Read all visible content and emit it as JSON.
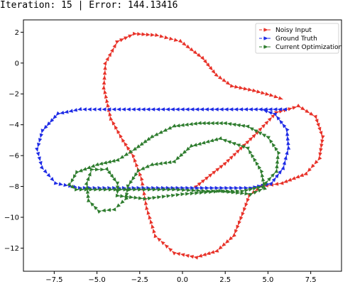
{
  "header": {
    "iteration_label": "Iteration:",
    "iteration_value": "15",
    "separator": "|",
    "error_label": "Error:",
    "error_value": "144.13416"
  },
  "chart_data": {
    "type": "line",
    "marker": "triangle-right",
    "title": "",
    "xlabel": "",
    "ylabel": "",
    "xlim": [
      -9.3,
      9.3
    ],
    "ylim": [
      -13.5,
      2.8
    ],
    "xticks": [
      -7.5,
      -5.0,
      -2.5,
      0.0,
      2.5,
      5.0,
      7.5
    ],
    "xtick_labels": [
      "−7.5",
      "−5.0",
      "−2.5",
      "0.0",
      "2.5",
      "5.0",
      "7.5"
    ],
    "yticks": [
      2,
      0,
      -2,
      -4,
      -6,
      -8,
      -10,
      -12
    ],
    "ytick_labels": [
      "2",
      "0",
      "−2",
      "−4",
      "−6",
      "−8",
      "−10",
      "−12"
    ],
    "grid": false,
    "legend_position": "top-right",
    "series": [
      {
        "name": "Noisy Input",
        "color": "#e8332a",
        "points": [
          [
            0.8,
            -8.0
          ],
          [
            2.5,
            -6.5
          ],
          [
            4.2,
            -4.7
          ],
          [
            5.5,
            -3.2
          ],
          [
            6.8,
            -2.8
          ],
          [
            7.8,
            -3.5
          ],
          [
            8.2,
            -4.8
          ],
          [
            8.0,
            -6.2
          ],
          [
            7.2,
            -7.2
          ],
          [
            5.8,
            -7.8
          ],
          [
            4.6,
            -8.0
          ],
          [
            3.9,
            -8.6
          ],
          [
            3.5,
            -9.8
          ],
          [
            3.0,
            -11.2
          ],
          [
            2.0,
            -12.2
          ],
          [
            0.8,
            -12.6
          ],
          [
            -0.5,
            -12.3
          ],
          [
            -1.6,
            -11.2
          ],
          [
            -2.1,
            -9.4
          ],
          [
            -2.4,
            -7.5
          ],
          [
            -2.9,
            -6.0
          ],
          [
            -3.5,
            -5.0
          ],
          [
            -4.2,
            -3.6
          ],
          [
            -4.6,
            -1.6
          ],
          [
            -4.5,
            0.0
          ],
          [
            -3.8,
            1.4
          ],
          [
            -2.8,
            1.9
          ],
          [
            -1.5,
            1.8
          ],
          [
            -0.1,
            1.4
          ],
          [
            1.2,
            0.3
          ],
          [
            2.0,
            -0.8
          ],
          [
            2.9,
            -1.5
          ],
          [
            4.2,
            -1.8
          ],
          [
            5.2,
            -2.1
          ],
          [
            6.0,
            -2.4
          ]
        ]
      },
      {
        "name": "Ground Truth",
        "color": "#1f2ce6",
        "points": [
          [
            6.0,
            -3.0
          ],
          [
            4.0,
            -3.0
          ],
          [
            2.0,
            -3.0
          ],
          [
            0.0,
            -3.0
          ],
          [
            -2.0,
            -3.0
          ],
          [
            -4.0,
            -3.0
          ],
          [
            -6.0,
            -3.0
          ],
          [
            -7.3,
            -3.3
          ],
          [
            -8.2,
            -4.4
          ],
          [
            -8.5,
            -5.6
          ],
          [
            -8.2,
            -6.8
          ],
          [
            -7.4,
            -7.8
          ],
          [
            -6.0,
            -8.1
          ],
          [
            -4.0,
            -8.1
          ],
          [
            -2.0,
            -8.1
          ],
          [
            0.0,
            -8.1
          ],
          [
            2.0,
            -8.1
          ],
          [
            4.0,
            -8.1
          ],
          [
            5.2,
            -7.8
          ],
          [
            5.9,
            -6.8
          ],
          [
            6.2,
            -5.5
          ],
          [
            6.1,
            -4.3
          ],
          [
            5.4,
            -3.3
          ],
          [
            4.6,
            -3.0
          ]
        ]
      },
      {
        "name": "Current Optimization",
        "color": "#2f7d2f",
        "points": [
          [
            -6.2,
            -8.2
          ],
          [
            -4.5,
            -8.2
          ],
          [
            -2.5,
            -8.2
          ],
          [
            -0.5,
            -8.2
          ],
          [
            1.5,
            -8.3
          ],
          [
            3.5,
            -8.3
          ],
          [
            4.7,
            -8.0
          ],
          [
            5.5,
            -7.0
          ],
          [
            5.6,
            -5.8
          ],
          [
            5.0,
            -4.8
          ],
          [
            3.8,
            -4.1
          ],
          [
            2.5,
            -3.9
          ],
          [
            1.0,
            -3.9
          ],
          [
            -0.5,
            -4.1
          ],
          [
            -1.8,
            -4.8
          ],
          [
            -2.8,
            -5.6
          ],
          [
            -3.8,
            -6.3
          ],
          [
            -5.0,
            -6.6
          ],
          [
            -6.2,
            -7.1
          ],
          [
            -6.6,
            -7.9
          ],
          [
            -6.2,
            -8.2
          ]
        ]
      },
      {
        "name": "",
        "color": "#2f7d2f",
        "points": [
          [
            -3.8,
            -8.6
          ],
          [
            -2.2,
            -8.8
          ],
          [
            0.0,
            -8.5
          ],
          [
            2.2,
            -8.3
          ],
          [
            4.0,
            -8.5
          ],
          [
            4.8,
            -8.1
          ],
          [
            4.6,
            -7.0
          ],
          [
            3.8,
            -5.5
          ],
          [
            2.2,
            -4.9
          ],
          [
            0.5,
            -5.4
          ],
          [
            -0.5,
            -6.4
          ],
          [
            -1.8,
            -6.6
          ],
          [
            -2.6,
            -7.0
          ],
          [
            -3.2,
            -8.0
          ],
          [
            -3.3,
            -8.8
          ],
          [
            -4.0,
            -9.5
          ],
          [
            -4.9,
            -9.6
          ],
          [
            -5.5,
            -8.9
          ],
          [
            -5.6,
            -7.8
          ],
          [
            -5.3,
            -6.9
          ],
          [
            -4.4,
            -6.9
          ],
          [
            -3.8,
            -7.8
          ],
          [
            -3.8,
            -8.6
          ]
        ]
      }
    ]
  }
}
